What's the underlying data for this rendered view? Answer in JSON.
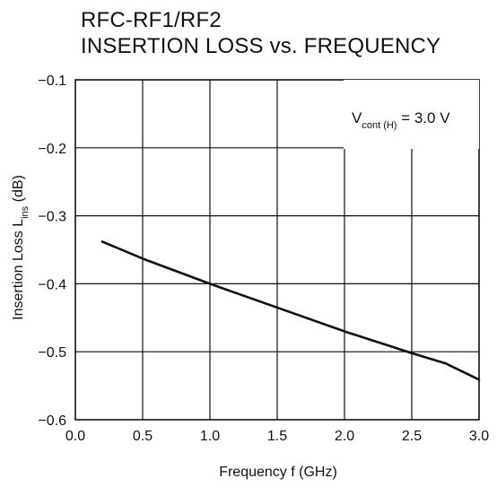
{
  "chart_data": {
    "type": "line",
    "title": [
      "RFC-RF1/RF2",
      "INSERTION LOSS vs. FREQUENCY"
    ],
    "xlabel": "Frequency  f (GHz)",
    "ylabel": {
      "main": "Insertion Loss  L",
      "sub": "ins",
      "unit": " (dB)"
    },
    "xlim": [
      0.0,
      3.0
    ],
    "ylim": [
      -0.6,
      -0.1
    ],
    "xticks": [
      0.0,
      0.5,
      1.0,
      1.5,
      2.0,
      2.5,
      3.0
    ],
    "xtick_labels": [
      "0.0",
      "0.5",
      "1.0",
      "1.5",
      "2.0",
      "2.5",
      "3.0"
    ],
    "yticks": [
      -0.1,
      -0.2,
      -0.3,
      -0.4,
      -0.5,
      -0.6
    ],
    "ytick_labels": [
      "−0.1",
      "−0.2",
      "−0.3",
      "−0.4",
      "−0.5",
      "−0.6"
    ],
    "grid": true,
    "annotation": {
      "main": "V",
      "sub": "cont (H)",
      "rest": " = 3.0 V"
    },
    "series": [
      {
        "x": [
          0.2,
          0.5,
          1.0,
          1.5,
          2.0,
          2.5,
          2.75,
          3.0
        ],
        "y": [
          -0.338,
          -0.363,
          -0.4,
          -0.435,
          -0.47,
          -0.502,
          -0.517,
          -0.541
        ],
        "color": "#111111"
      }
    ]
  }
}
